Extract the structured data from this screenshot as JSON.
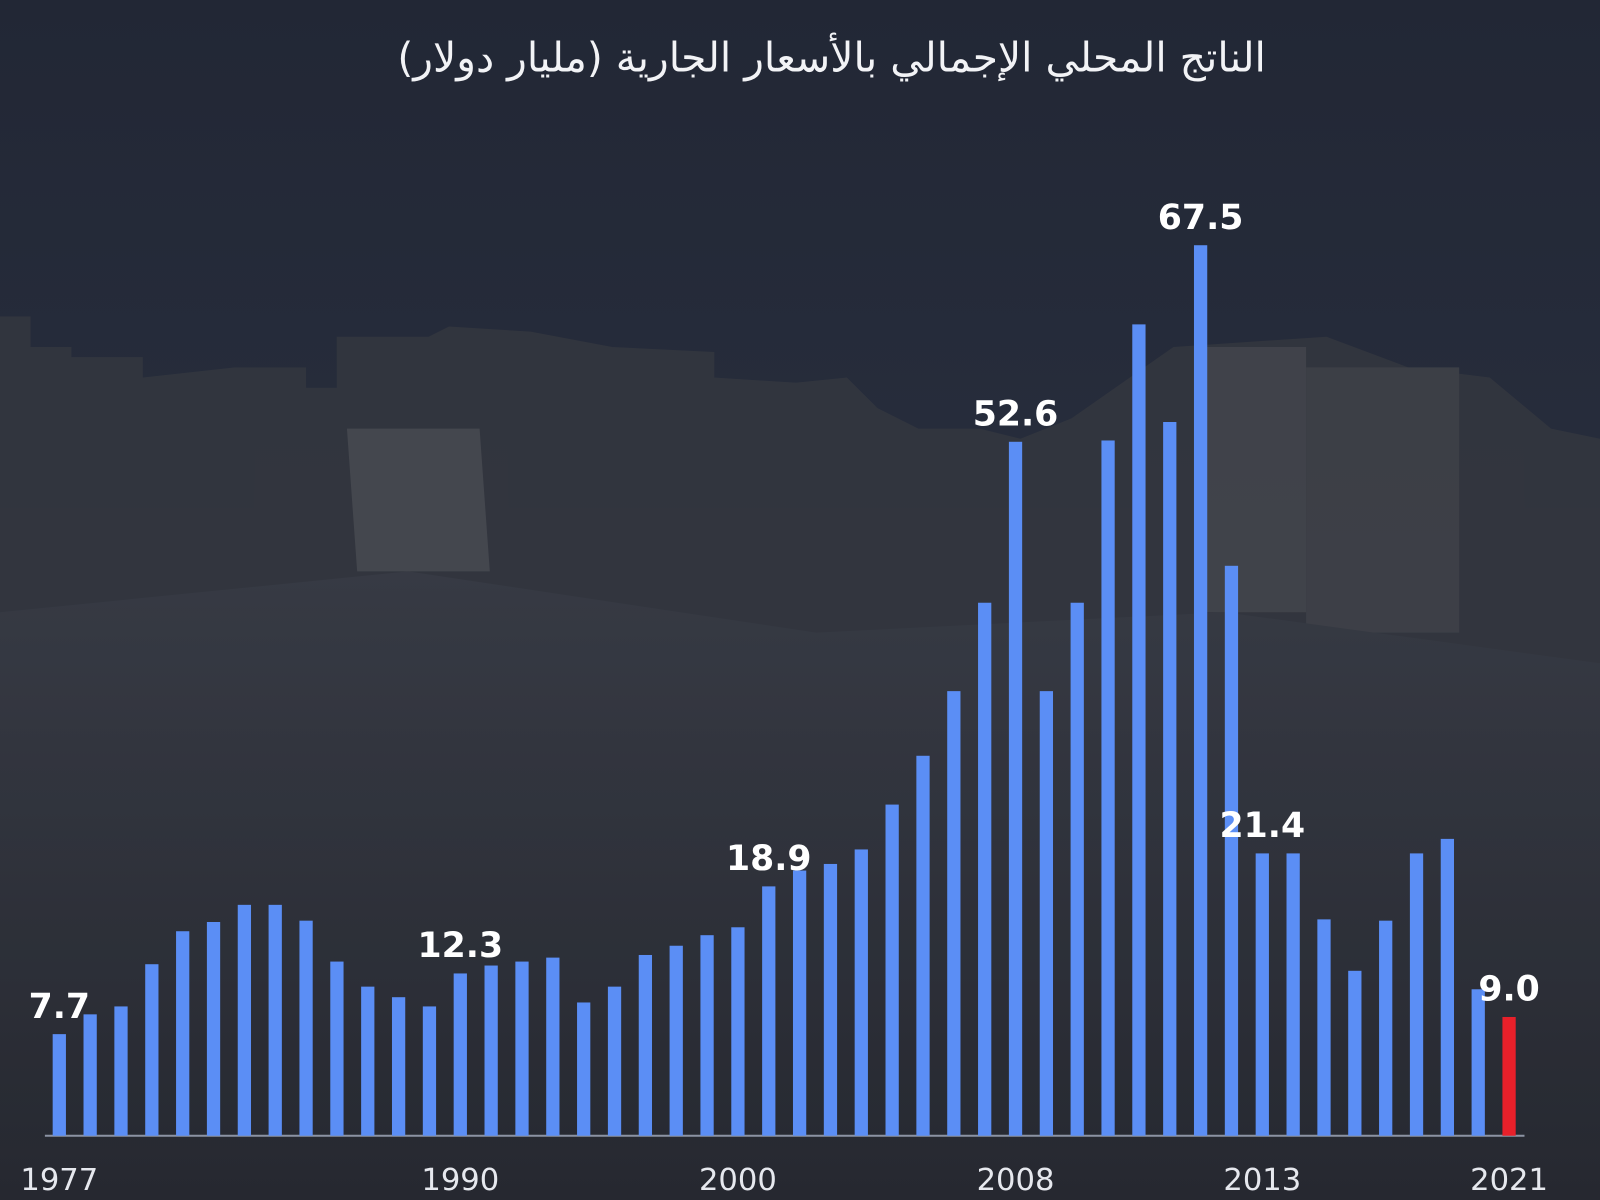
{
  "chart_data": {
    "type": "bar",
    "title": "الناتج المحلي الإجمالي بالأسعار الجارية (مليار دولار)",
    "categories": [
      "1977",
      null,
      null,
      null,
      null,
      null,
      null,
      null,
      null,
      null,
      null,
      null,
      null,
      "1990",
      null,
      null,
      null,
      null,
      null,
      null,
      null,
      null,
      "2000",
      null,
      null,
      null,
      null,
      null,
      null,
      null,
      null,
      "2008",
      null,
      null,
      null,
      null,
      null,
      null,
      null,
      "2013",
      null,
      null,
      null,
      null,
      null,
      null,
      null,
      "2021"
    ],
    "values": [
      7.7,
      9.2,
      9.8,
      13.0,
      15.5,
      16.2,
      17.5,
      17.5,
      16.3,
      13.2,
      11.3,
      10.5,
      9.8,
      12.3,
      12.9,
      13.2,
      13.5,
      10.1,
      11.3,
      13.7,
      14.4,
      15.2,
      15.8,
      18.9,
      20.1,
      20.6,
      21.7,
      25.1,
      28.8,
      33.7,
      40.4,
      52.6,
      33.7,
      40.4,
      52.7,
      61.5,
      54.1,
      67.5,
      43.2,
      21.4,
      21.4,
      16.4,
      12.5,
      16.3,
      21.4,
      22.5,
      11.1,
      9.0
    ],
    "value_labels": [
      "7.7",
      null,
      null,
      null,
      null,
      null,
      null,
      null,
      null,
      null,
      null,
      null,
      null,
      "12.3",
      null,
      null,
      null,
      null,
      null,
      null,
      null,
      null,
      null,
      "18.9",
      null,
      null,
      null,
      null,
      null,
      null,
      null,
      "52.6",
      null,
      null,
      null,
      null,
      null,
      "67.5",
      null,
      "21.4",
      null,
      null,
      null,
      null,
      null,
      null,
      null,
      "9.0"
    ],
    "colors": [
      "#5b8ef5",
      "#5b8ef5",
      "#5b8ef5",
      "#5b8ef5",
      "#5b8ef5",
      "#5b8ef5",
      "#5b8ef5",
      "#5b8ef5",
      "#5b8ef5",
      "#5b8ef5",
      "#5b8ef5",
      "#5b8ef5",
      "#5b8ef5",
      "#5b8ef5",
      "#5b8ef5",
      "#5b8ef5",
      "#5b8ef5",
      "#5b8ef5",
      "#5b8ef5",
      "#5b8ef5",
      "#5b8ef5",
      "#5b8ef5",
      "#5b8ef5",
      "#5b8ef5",
      "#5b8ef5",
      "#5b8ef5",
      "#5b8ef5",
      "#5b8ef5",
      "#5b8ef5",
      "#5b8ef5",
      "#5b8ef5",
      "#5b8ef5",
      "#5b8ef5",
      "#5b8ef5",
      "#5b8ef5",
      "#5b8ef5",
      "#5b8ef5",
      "#5b8ef5",
      "#5b8ef5",
      "#5b8ef5",
      "#5b8ef5",
      "#5b8ef5",
      "#5b8ef5",
      "#5b8ef5",
      "#5b8ef5",
      "#5b8ef5",
      "#5b8ef5",
      "#e8202a"
    ],
    "ylim": [
      0,
      70
    ]
  }
}
